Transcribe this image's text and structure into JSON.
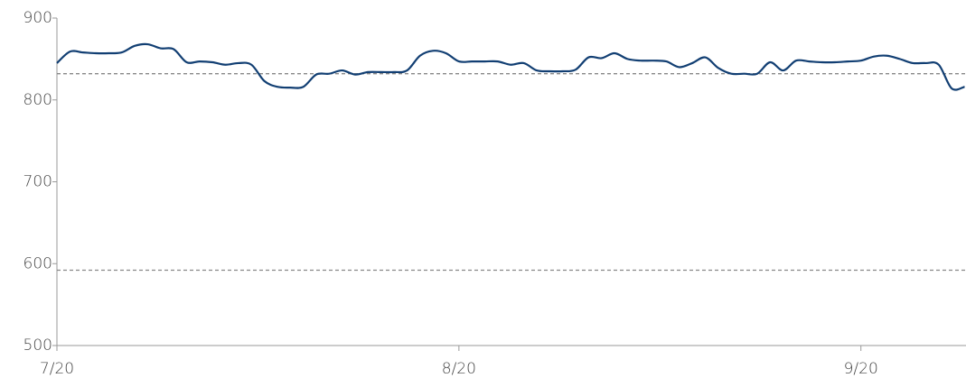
{
  "chart_data": {
    "type": "line",
    "x": [
      "7/20",
      "7/21",
      "7/22",
      "7/23",
      "7/24",
      "7/25",
      "7/26",
      "7/27",
      "7/28",
      "7/29",
      "7/30",
      "7/31",
      "8/1",
      "8/2",
      "8/3",
      "8/4",
      "8/5",
      "8/6",
      "8/7",
      "8/8",
      "8/9",
      "8/10",
      "8/11",
      "8/12",
      "8/13",
      "8/14",
      "8/15",
      "8/16",
      "8/17",
      "8/18",
      "8/19",
      "8/20",
      "8/21",
      "8/22",
      "8/23",
      "8/24",
      "8/25",
      "8/26",
      "8/27",
      "8/28",
      "8/29",
      "8/30",
      "8/31",
      "9/1",
      "9/2",
      "9/3",
      "9/4",
      "9/5",
      "9/6",
      "9/7",
      "9/8",
      "9/9",
      "9/10",
      "9/11",
      "9/12",
      "9/13",
      "9/14",
      "9/15",
      "9/16",
      "9/17",
      "9/18",
      "9/19",
      "9/20",
      "9/21",
      "9/22",
      "9/23",
      "9/24",
      "9/25",
      "9/26",
      "9/27",
      "9/28"
    ],
    "series": [
      {
        "color": "#123f73",
        "values": [
          845,
          859,
          858,
          857,
          857,
          858,
          866,
          868,
          863,
          862,
          846,
          847,
          846,
          843,
          845,
          843,
          823,
          816,
          815,
          816,
          831,
          832,
          836,
          831,
          834,
          834,
          834,
          836,
          854,
          860,
          857,
          847,
          847,
          847,
          847,
          843,
          845,
          836,
          835,
          835,
          837,
          852,
          851,
          857,
          850,
          848,
          848,
          847,
          840,
          845,
          852,
          839,
          832,
          832,
          832,
          846,
          836,
          848,
          847,
          846,
          846,
          847,
          848,
          853,
          854,
          850,
          845,
          845,
          843,
          814,
          816
        ]
      }
    ],
    "ylim": [
      500,
      900
    ],
    "yticks": [
      500,
      600,
      700,
      800,
      900
    ],
    "xticks": [
      "7/20",
      "8/20",
      "9/20"
    ],
    "reference_lines": [
      832,
      592
    ],
    "reference_color": "#888888"
  }
}
